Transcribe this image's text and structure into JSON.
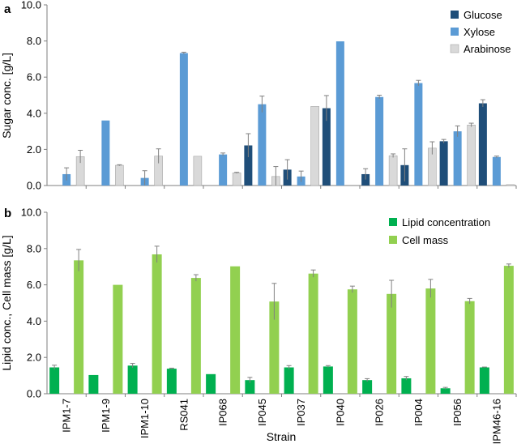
{
  "chart_data": [
    {
      "type": "bar",
      "panel_label": "a",
      "ylabel": "Sugar conc. [g/L]",
      "xlabel": "",
      "ylim": [
        0,
        10
      ],
      "yticks": [
        "0.0",
        "2.0",
        "4.0",
        "6.0",
        "8.0",
        "10.0"
      ],
      "grid": false,
      "legend_position": "top-right",
      "categories": [
        "IPM1-7",
        "IPM1-9",
        "IPM1-10",
        "RS041",
        "IP068",
        "IP045",
        "IP037",
        "IP040",
        "IP026",
        "IP004",
        "IP056",
        "IPM46-16"
      ],
      "series": [
        {
          "name": "Glucose",
          "color": "#1f4e79",
          "values": [
            0,
            0,
            0,
            0,
            0,
            2.22,
            0.88,
            4.28,
            0.63,
            1.13,
            2.45,
            4.55
          ],
          "errors": [
            0,
            0,
            0,
            0,
            0,
            0.65,
            0.55,
            0.7,
            0.3,
            0.9,
            0.1,
            0.2
          ]
        },
        {
          "name": "Xylose",
          "color": "#5b9bd5",
          "values": [
            0.63,
            3.6,
            0.42,
            7.33,
            1.72,
            4.5,
            0.5,
            7.98,
            4.9,
            5.67,
            3.0,
            1.58
          ],
          "errors": [
            0.35,
            0,
            0.4,
            0.05,
            0.08,
            0.45,
            0.3,
            0,
            0.1,
            0.15,
            0.3,
            0.05
          ]
        },
        {
          "name": "Arabinose",
          "color": "#d9d9d9",
          "values": [
            1.6,
            1.12,
            1.63,
            1.62,
            0.7,
            0.5,
            4.38,
            0,
            1.65,
            2.07,
            3.35,
            0.05
          ],
          "errors": [
            0.35,
            0.03,
            0.4,
            0,
            0.03,
            0.55,
            0,
            0,
            0.1,
            0.35,
            0.1,
            0
          ]
        }
      ]
    },
    {
      "type": "bar",
      "panel_label": "b",
      "ylabel": "Lipid conc., Cell mass [g/L]",
      "xlabel": "Strain",
      "ylim": [
        0,
        10
      ],
      "yticks": [
        "0.0",
        "2.0",
        "4.0",
        "6.0",
        "8.0",
        "10.0"
      ],
      "grid": false,
      "legend_position": "top-right",
      "categories": [
        "IPM1-7",
        "IPM1-9",
        "IPM1-10",
        "RS041",
        "IP068",
        "IP045",
        "IP037",
        "IP040",
        "IP026",
        "IP004",
        "IP056",
        "IPM46-16"
      ],
      "series": [
        {
          "name": "Lipid concentration",
          "color": "#00b050",
          "values": [
            1.45,
            1.03,
            1.55,
            1.38,
            1.08,
            0.75,
            1.45,
            1.5,
            0.75,
            0.85,
            0.3,
            1.45
          ],
          "errors": [
            0.12,
            0,
            0.12,
            0.03,
            0,
            0.15,
            0.1,
            0.05,
            0.08,
            0.1,
            0.05,
            0.02
          ]
        },
        {
          "name": "Cell mass",
          "color": "#92d050",
          "values": [
            7.35,
            6.0,
            7.68,
            6.38,
            7.02,
            5.08,
            6.62,
            5.75,
            5.5,
            5.8,
            5.1,
            7.05
          ],
          "errors": [
            0.6,
            0,
            0.45,
            0.18,
            0,
            1.0,
            0.2,
            0.18,
            0.75,
            0.5,
            0.15,
            0.1
          ]
        }
      ]
    }
  ]
}
